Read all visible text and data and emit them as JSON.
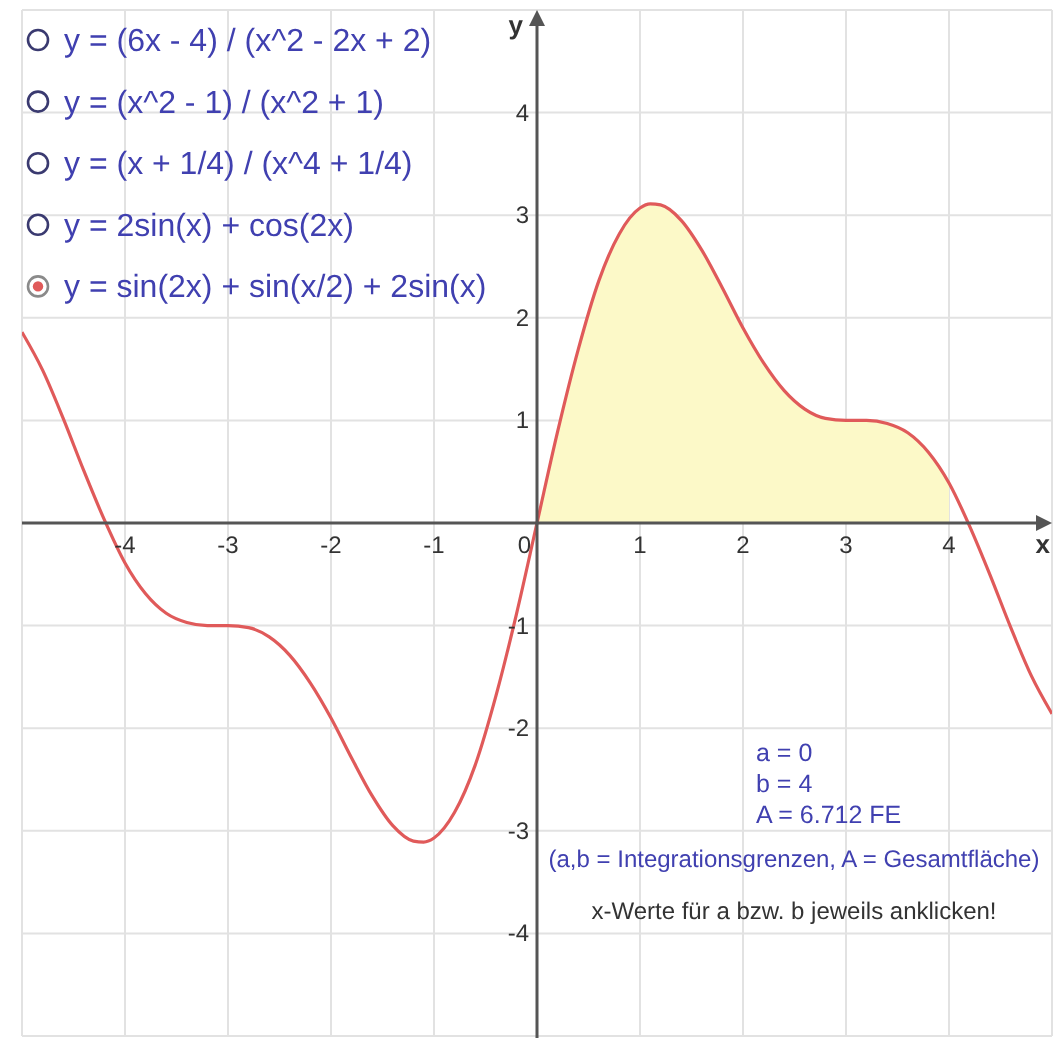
{
  "chart_data": {
    "type": "line",
    "xlabel": "x",
    "ylabel": "y",
    "xlim": [
      -5,
      5
    ],
    "ylim": [
      -5,
      5
    ],
    "xticks": [
      -4,
      -3,
      -2,
      -1,
      0,
      1,
      2,
      3,
      4
    ],
    "yticks": [
      -4,
      -3,
      -2,
      -1,
      1,
      2,
      3,
      4
    ],
    "grid": true,
    "legend": "top left",
    "series": [
      {
        "type": "area",
        "color": "#fcf9c8",
        "x": [
          0,
          0.2,
          0.4,
          0.6,
          0.8,
          1.0,
          1.1,
          1.2,
          1.4,
          1.6,
          1.8,
          2.0,
          2.2,
          2.4,
          2.6,
          2.8,
          3.0,
          3.2,
          3.4,
          3.6,
          3.8,
          4.0
        ],
        "values": [
          0,
          0.89,
          1.69,
          2.36,
          2.82,
          3.07,
          3.11,
          3.1,
          2.95,
          2.66,
          2.29,
          1.9,
          1.56,
          1.29,
          1.11,
          1.02,
          1.0,
          1.0,
          0.97,
          0.88,
          0.69,
          0.39
        ]
      },
      {
        "name": "y = sin(2x) + sin(x/2) + 2sin(x)",
        "color": "#e05a5a",
        "x": [
          -5.0,
          -4.8,
          -4.6,
          -4.4,
          -4.2,
          -4.0,
          -3.8,
          -3.6,
          -3.4,
          -3.2,
          -3.0,
          -2.8,
          -2.6,
          -2.4,
          -2.2,
          -2.0,
          -1.8,
          -1.6,
          -1.4,
          -1.2,
          -1.1,
          -1.0,
          -0.8,
          -0.6,
          -0.4,
          -0.2,
          0,
          0.2,
          0.4,
          0.6,
          0.8,
          1.0,
          1.1,
          1.2,
          1.4,
          1.6,
          1.8,
          2.0,
          2.2,
          2.4,
          2.6,
          2.8,
          3.0,
          3.2,
          3.4,
          3.6,
          3.8,
          4.0,
          4.2,
          4.4,
          4.6,
          4.8,
          5.0
        ],
        "values": [
          1.86,
          1.49,
          1.02,
          0.51,
          0.03,
          -0.39,
          -0.69,
          -0.88,
          -0.97,
          -1.0,
          -1.0,
          -1.02,
          -1.11,
          -1.29,
          -1.56,
          -1.9,
          -2.29,
          -2.66,
          -2.95,
          -3.1,
          -3.11,
          -3.07,
          -2.82,
          -2.36,
          -1.69,
          -0.89,
          0,
          0.89,
          1.69,
          2.36,
          2.82,
          3.07,
          3.11,
          3.1,
          2.95,
          2.66,
          2.29,
          1.9,
          1.56,
          1.29,
          1.11,
          1.02,
          1.0,
          1.0,
          0.97,
          0.88,
          0.69,
          0.39,
          -0.03,
          -0.51,
          -1.02,
          -1.49,
          -1.86
        ]
      }
    ],
    "annotations": [
      "y = (6x - 4) / (x^2 - 2x + 2)",
      "y = (x^2 - 1) / (x^2 + 1)",
      "y = (x + 1/4) / (x^4 + 1/4)",
      "y = 2sin(x) + cos(2x)",
      "a = 0",
      "b = 4",
      "A = 6.712 FE",
      "(a,b = Integrationsgrenzen, A = Gesamtfläche)",
      "x-Werte für a bzw. b jeweils anklicken!"
    ]
  }
}
